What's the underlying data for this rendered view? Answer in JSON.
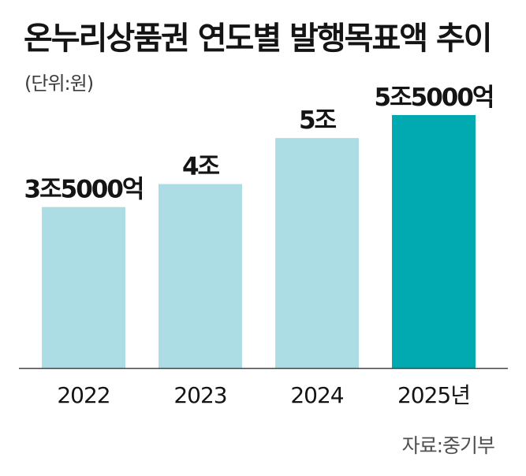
{
  "chart_data": {
    "type": "bar",
    "title": "온누리상품권 연도별 발행목표액 추이",
    "unit": "(단위:원)",
    "categories": [
      "2022",
      "2023",
      "2024",
      "2025년"
    ],
    "values": [
      3.5,
      4.0,
      5.0,
      5.5
    ],
    "value_unit": "조원",
    "data_labels": [
      "3조5000억",
      "4조",
      "5조",
      "5조5000억"
    ],
    "xlabel": "",
    "ylabel": "",
    "ylim": [
      0,
      5.5
    ],
    "grid": false,
    "legend": "none",
    "highlight_index": 3,
    "colors": {
      "bar": "#acdce4",
      "highlight": "#00aab0",
      "axis": "#444444",
      "text": "#141414"
    },
    "source": "자료:중기부"
  }
}
